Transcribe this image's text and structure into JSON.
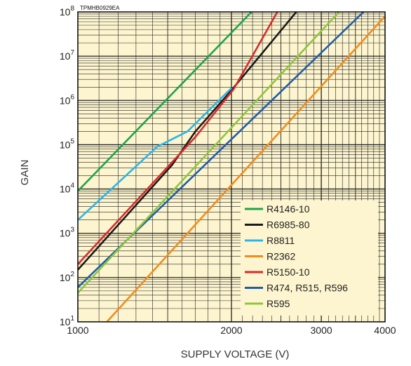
{
  "chart_data": {
    "type": "line",
    "code": "TPMHB0929EA",
    "xlabel": "SUPPLY VOLTAGE (V)",
    "ylabel": "GAIN",
    "xscale": "log",
    "yscale": "log",
    "xlim": [
      1000,
      4000
    ],
    "ylim": [
      10,
      100000000
    ],
    "x_ticks": [
      {
        "value": 1000,
        "label": "1000"
      },
      {
        "value": 2000,
        "label": "2000"
      },
      {
        "value": 3000,
        "label": "3000"
      },
      {
        "value": 4000,
        "label": "4000"
      }
    ],
    "y_ticks": [
      {
        "value": 10,
        "base": "10",
        "exp": "1"
      },
      {
        "value": 100,
        "base": "10",
        "exp": "2"
      },
      {
        "value": 1000,
        "base": "10",
        "exp": "3"
      },
      {
        "value": 10000,
        "base": "10",
        "exp": "4"
      },
      {
        "value": 100000,
        "base": "10",
        "exp": "5"
      },
      {
        "value": 1000000,
        "base": "10",
        "exp": "6"
      },
      {
        "value": 10000000,
        "base": "10",
        "exp": "7"
      },
      {
        "value": 100000000,
        "base": "10",
        "exp": "8"
      }
    ],
    "grid": true,
    "legend_position": "bottom-right",
    "background": "#fdf5cf",
    "series": [
      {
        "name": "R4146-10",
        "color": "#1ea34a",
        "points": [
          [
            1000,
            9000
          ],
          [
            2190,
            100000000
          ]
        ]
      },
      {
        "name": "R6985-80",
        "color": "#1a1a1a",
        "points": [
          [
            1000,
            150
          ],
          [
            1530,
            35000
          ],
          [
            1700,
            200000
          ],
          [
            2000,
            1700000
          ],
          [
            2680,
            100000000
          ]
        ]
      },
      {
        "name": "R8811",
        "color": "#2cb5e8",
        "points": [
          [
            1000,
            2000
          ],
          [
            1430,
            90000
          ],
          [
            1640,
            200000
          ],
          [
            2000,
            1900000
          ]
        ]
      },
      {
        "name": "R2362",
        "color": "#f28c1e",
        "points": [
          [
            1140,
            10
          ],
          [
            4000,
            80000000
          ]
        ]
      },
      {
        "name": "R5150-10",
        "color": "#d92b2b",
        "points": [
          [
            1000,
            200
          ],
          [
            1700,
            150000
          ],
          [
            2020,
            1800000
          ],
          [
            2460,
            100000000
          ]
        ]
      },
      {
        "name": "R474, R515, R596",
        "color": "#1f5ea8",
        "points": [
          [
            1000,
            60
          ],
          [
            3630,
            100000000
          ]
        ]
      },
      {
        "name": "R595",
        "color": "#8fc63e",
        "points": [
          [
            1000,
            45
          ],
          [
            3250,
            100000000
          ]
        ]
      }
    ]
  }
}
